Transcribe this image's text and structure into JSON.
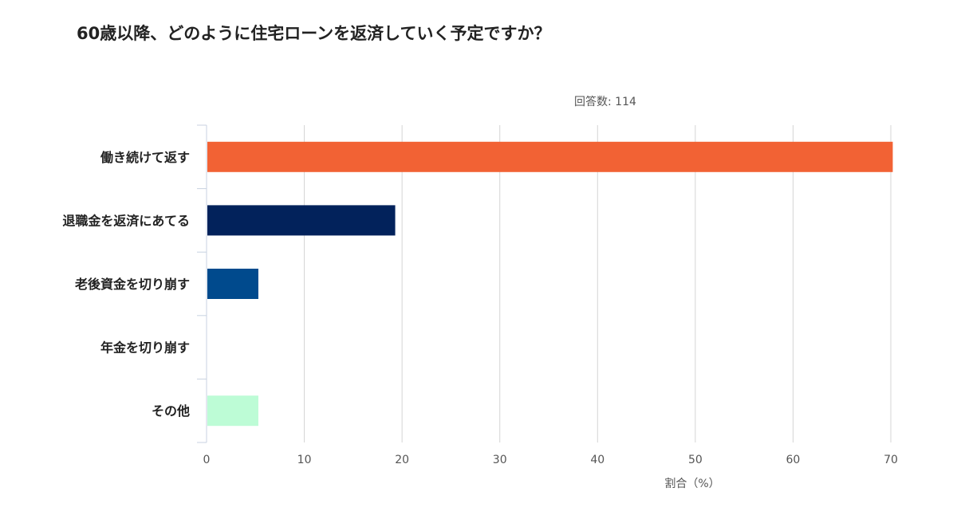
{
  "chart_data": {
    "type": "bar",
    "orientation": "horizontal",
    "title": "60歳以降、どのように住宅ローンを返済していく予定ですか？",
    "subtitle": "回答数: 114",
    "xlabel": "割合（%）",
    "ylabel": "",
    "categories": [
      "働き続けて返す",
      "退職金を返済にあてる",
      "老後資金を切り崩す",
      "年金を切り崩す",
      "その他"
    ],
    "values": [
      70.2,
      19.3,
      5.3,
      0,
      5.3
    ],
    "colors": [
      "#F26234",
      "#02225B",
      "#004A8D",
      "#6FA8DC",
      "#BDFCD6"
    ],
    "xlim": [
      0,
      70
    ],
    "xticks": [
      "0",
      "10",
      "20",
      "30",
      "40",
      "50",
      "60",
      "70"
    ],
    "grid": true,
    "legend": "none"
  }
}
